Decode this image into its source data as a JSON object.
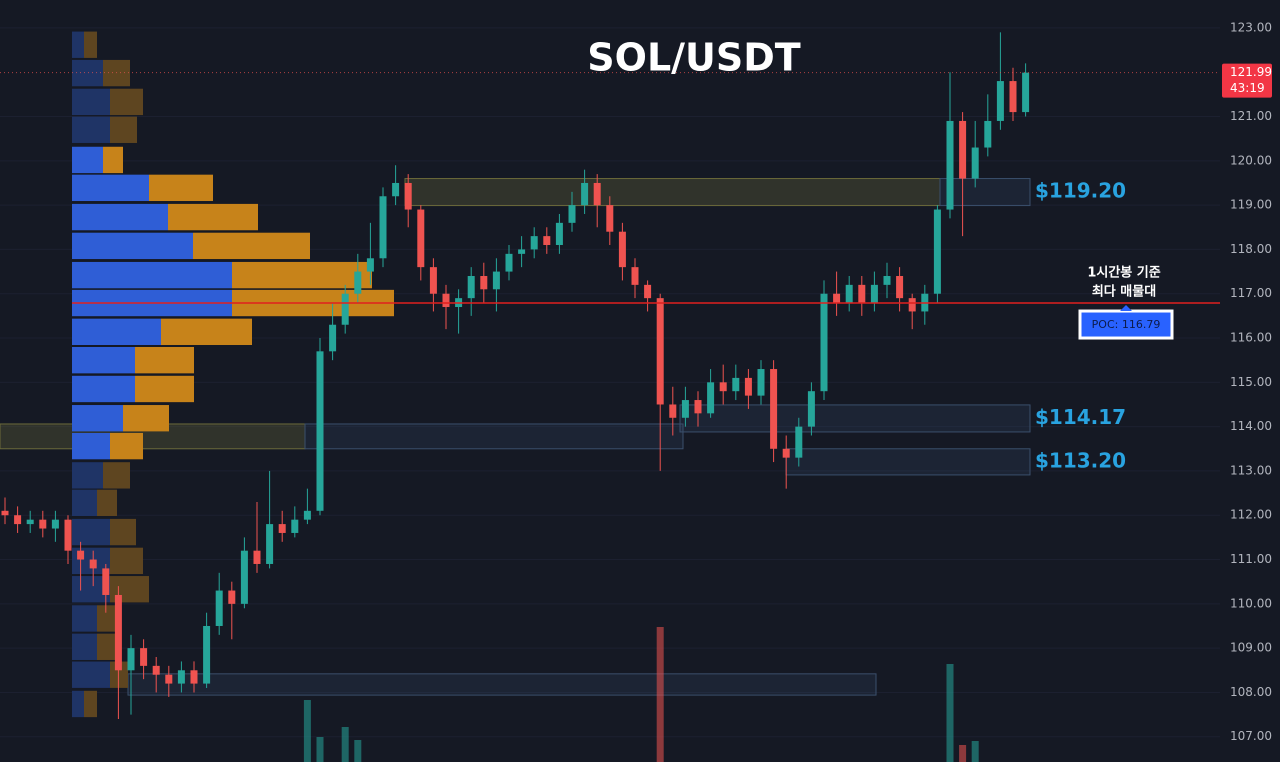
{
  "chart_data": {
    "type": "candlestick",
    "title": "SOL/USDT",
    "up_color": "#26a69a",
    "down_color": "#ef5350",
    "ylim": [
      106.43,
      123.63
    ],
    "yticks": [
      {
        "value": 107,
        "label": "107.00"
      },
      {
        "value": 108,
        "label": "108.00"
      },
      {
        "value": 109,
        "label": "109.00"
      },
      {
        "value": 110,
        "label": "110.00"
      },
      {
        "value": 111,
        "label": "111.00"
      },
      {
        "value": 112,
        "label": "112.00"
      },
      {
        "value": 113,
        "label": "113.00"
      },
      {
        "value": 114,
        "label": "114.00"
      },
      {
        "value": 115,
        "label": "115.00"
      },
      {
        "value": 116,
        "label": "116.00"
      },
      {
        "value": 117,
        "label": "117.00"
      },
      {
        "value": 118,
        "label": "118.00"
      },
      {
        "value": 119,
        "label": "119.00"
      },
      {
        "value": 120,
        "label": "120.00"
      },
      {
        "value": 121,
        "label": "121.00"
      },
      {
        "value": 123,
        "label": "123.00"
      }
    ],
    "grid": true,
    "open": [
      112.1,
      112.0,
      111.8,
      111.9,
      111.7,
      111.9,
      111.2,
      111.0,
      110.8,
      110.2,
      108.5,
      109.0,
      108.6,
      108.4,
      108.2,
      108.5,
      108.2,
      109.5,
      110.3,
      110.0,
      111.2,
      110.9,
      111.8,
      111.6,
      111.9,
      112.1,
      115.7,
      116.3,
      117.0,
      117.5,
      117.8,
      119.2,
      119.5,
      118.9,
      117.6,
      117.0,
      116.7,
      116.9,
      117.4,
      117.1,
      117.5,
      117.9,
      118.0,
      118.3,
      118.1,
      118.6,
      119.0,
      119.5,
      119.0,
      118.4,
      117.6,
      117.2,
      116.9,
      114.5,
      114.2,
      114.6,
      114.3,
      115.0,
      114.8,
      115.1,
      114.7,
      115.3,
      113.5,
      113.3,
      114.0,
      114.8,
      117.0,
      116.8,
      117.2,
      116.8,
      117.2,
      117.4,
      116.9,
      116.6,
      117.0,
      118.9,
      120.9,
      119.6,
      120.3,
      120.9,
      121.8,
      121.1
    ],
    "high": [
      112.4,
      112.2,
      112.1,
      112.1,
      112.1,
      112.0,
      111.4,
      111.2,
      110.9,
      110.4,
      109.3,
      109.2,
      108.8,
      108.6,
      108.7,
      108.7,
      109.8,
      110.7,
      110.5,
      111.5,
      112.3,
      113.0,
      112.1,
      112.2,
      112.6,
      116.0,
      116.8,
      117.2,
      117.9,
      118.6,
      119.4,
      119.9,
      119.7,
      119.0,
      117.8,
      117.2,
      117.1,
      117.6,
      117.7,
      117.8,
      118.1,
      118.3,
      118.5,
      118.5,
      118.8,
      119.3,
      119.8,
      119.7,
      119.2,
      118.6,
      117.8,
      117.3,
      117.0,
      114.9,
      114.9,
      114.8,
      115.3,
      115.4,
      115.4,
      115.3,
      115.5,
      115.5,
      113.8,
      114.2,
      115.0,
      117.3,
      117.5,
      117.4,
      117.4,
      117.5,
      117.7,
      117.6,
      117.0,
      117.2,
      119.0,
      122.0,
      121.1,
      120.9,
      121.5,
      122.9,
      122.1,
      122.2
    ],
    "low": [
      111.8,
      111.6,
      111.6,
      111.5,
      111.4,
      110.9,
      110.3,
      110.4,
      109.8,
      107.4,
      107.5,
      108.3,
      108.0,
      107.9,
      108.0,
      108.0,
      108.1,
      109.3,
      109.2,
      109.9,
      110.7,
      110.8,
      111.4,
      111.5,
      111.8,
      112.0,
      115.5,
      116.1,
      116.8,
      117.2,
      117.6,
      119.0,
      118.5,
      117.3,
      116.6,
      116.2,
      116.1,
      116.5,
      116.8,
      116.6,
      117.3,
      117.6,
      117.8,
      117.9,
      117.9,
      118.4,
      118.8,
      118.5,
      118.1,
      117.3,
      116.9,
      116.6,
      113.0,
      113.8,
      114.0,
      114.0,
      114.2,
      114.5,
      114.6,
      114.4,
      114.5,
      113.2,
      112.6,
      113.1,
      113.8,
      114.6,
      116.5,
      116.6,
      116.5,
      116.6,
      116.9,
      116.6,
      116.2,
      116.3,
      116.8,
      118.7,
      118.3,
      119.4,
      120.1,
      120.7,
      120.9,
      121.0
    ],
    "close": [
      112.0,
      111.8,
      111.9,
      111.7,
      111.9,
      111.2,
      111.0,
      110.8,
      110.2,
      108.5,
      109.0,
      108.6,
      108.4,
      108.2,
      108.5,
      108.2,
      109.5,
      110.3,
      110.0,
      111.2,
      110.9,
      111.8,
      111.6,
      111.9,
      112.1,
      115.7,
      116.3,
      117.0,
      117.5,
      117.8,
      119.2,
      119.5,
      118.9,
      117.6,
      117.0,
      116.7,
      116.9,
      117.4,
      117.1,
      117.5,
      117.9,
      118.0,
      118.3,
      118.1,
      118.6,
      119.0,
      119.5,
      119.0,
      118.4,
      117.6,
      117.2,
      116.9,
      114.5,
      114.2,
      114.6,
      114.3,
      115.0,
      114.8,
      115.1,
      114.7,
      115.3,
      113.5,
      113.3,
      114.0,
      114.8,
      117.0,
      116.8,
      117.2,
      116.8,
      117.2,
      117.4,
      116.9,
      116.6,
      117.0,
      118.9,
      120.9,
      119.6,
      120.3,
      120.9,
      121.8,
      121.1,
      121.99
    ],
    "volume": [
      0,
      0,
      0,
      0,
      0,
      0,
      0,
      0,
      0,
      0,
      0,
      0,
      0,
      0,
      0,
      0,
      0,
      0,
      0,
      0,
      0,
      0,
      0,
      0,
      62,
      25,
      0,
      35,
      22,
      0,
      0,
      0,
      0,
      0,
      0,
      0,
      0,
      0,
      0,
      0,
      0,
      0,
      0,
      0,
      0,
      0,
      0,
      0,
      0,
      0,
      0,
      0,
      135,
      0,
      0,
      0,
      0,
      0,
      0,
      0,
      0,
      0,
      0,
      0,
      0,
      0,
      0,
      0,
      0,
      0,
      0,
      0,
      0,
      0,
      0,
      98,
      17,
      21,
      0,
      0,
      0,
      0
    ],
    "last_price": 121.99,
    "countdown": "43:19",
    "poc": {
      "value": 116.79,
      "label": "POC: 116.79"
    },
    "annotations": [
      "1시간봉 기준",
      "최다 매물대"
    ],
    "zones": [
      {
        "low": 118.99,
        "high": 119.6,
        "label": "$119.20"
      },
      {
        "low": 113.88,
        "high": 114.49,
        "label": "$114.17"
      },
      {
        "low": 113.5,
        "high": 114.06
      },
      {
        "low": 112.91,
        "high": 113.5,
        "label": "$113.20"
      },
      {
        "low": 107.94,
        "high": 108.42
      }
    ],
    "volume_profile": {
      "levels": [
        122.62,
        121.98,
        121.33,
        120.7,
        120.02,
        119.39,
        118.73,
        118.08,
        117.42,
        116.79,
        116.14,
        115.5,
        114.85,
        114.19,
        113.56,
        112.9,
        112.28,
        111.62,
        110.97,
        110.33,
        109.67,
        109.03,
        108.4,
        107.74
      ],
      "buy": [
        12,
        31,
        38,
        38,
        31,
        77,
        96,
        121,
        160,
        160,
        89,
        63,
        63,
        51,
        38,
        31,
        25,
        38,
        38,
        38,
        25,
        25,
        38,
        12
      ],
      "sell": [
        13,
        27,
        33,
        27,
        20,
        64,
        90,
        117,
        140,
        162,
        91,
        59,
        59,
        46,
        33,
        27,
        20,
        26,
        33,
        39,
        24,
        24,
        18,
        13
      ],
      "value_area": [
        113.2,
        120.4
      ]
    }
  }
}
